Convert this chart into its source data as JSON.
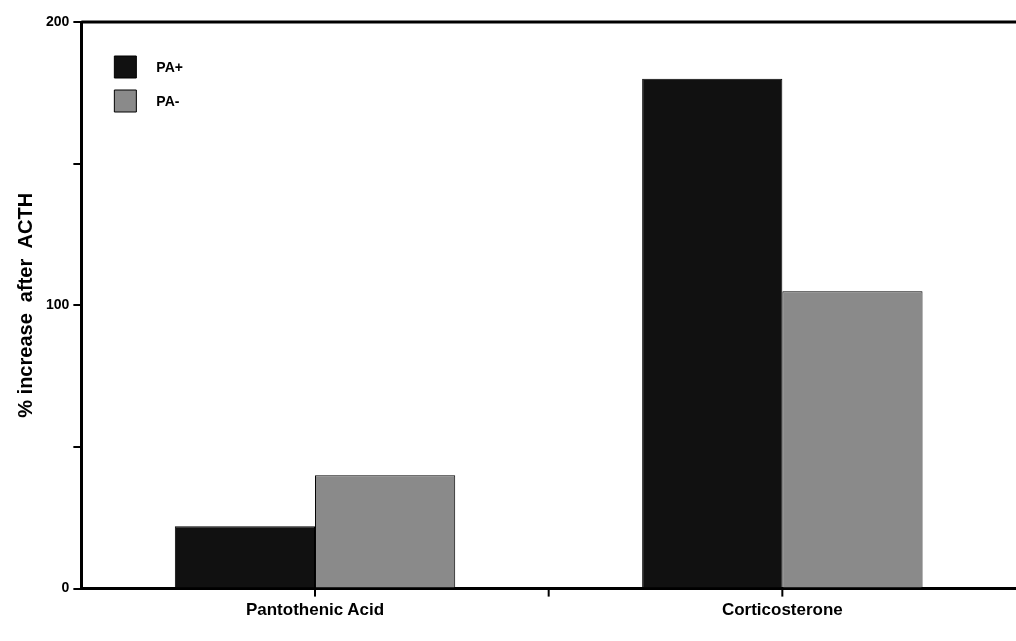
{
  "chart_data": {
    "type": "bar",
    "ylabel": "% increase  after  ACTH",
    "categories": [
      "Pantothenic Acid",
      "Corticosterone"
    ],
    "series": [
      {
        "name": "PA+",
        "color": "#111111",
        "values": [
          22,
          180
        ]
      },
      {
        "name": "PA-",
        "color": "#8a8a8a",
        "values": [
          40,
          105
        ]
      }
    ],
    "ylim": [
      0,
      200
    ],
    "yticks": [
      0,
      {
        "value": 50,
        "label": null
      },
      100,
      {
        "value": 150,
        "label": null
      },
      200
    ],
    "grid": false,
    "legend": "top left"
  }
}
